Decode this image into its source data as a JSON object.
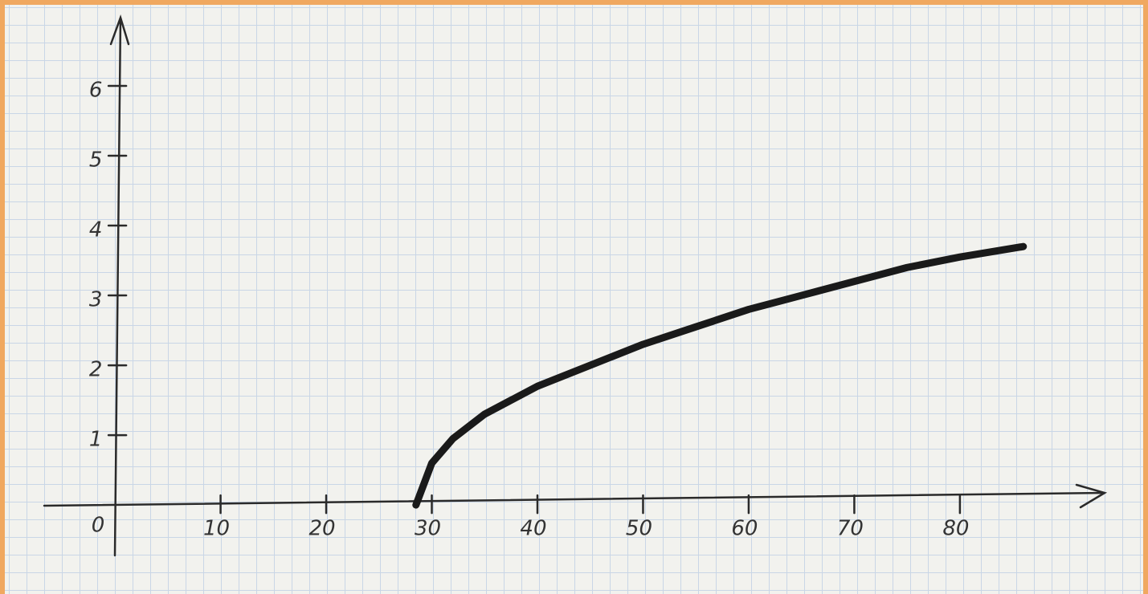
{
  "chart_data": {
    "type": "line",
    "x": [
      28.5,
      30,
      32,
      35,
      40,
      45,
      50,
      55,
      60,
      65,
      70,
      75,
      80,
      86
    ],
    "series": [
      {
        "color": "#1a1a1a",
        "values": [
          0,
          0.6,
          0.95,
          1.3,
          1.7,
          2.0,
          2.3,
          2.55,
          2.8,
          3.0,
          3.2,
          3.4,
          3.55,
          3.7
        ]
      }
    ],
    "xlim": [
      -6.7,
      93.7
    ],
    "ylim": [
      -0.7,
      7.0
    ],
    "xticks": [
      10,
      20,
      30,
      40,
      50,
      60,
      70,
      80
    ],
    "yticks": [
      1,
      2,
      3,
      4,
      5,
      6
    ],
    "origin": 0
  }
}
